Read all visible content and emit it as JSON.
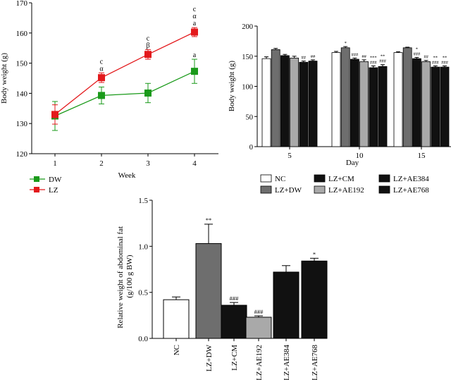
{
  "chart_data": [
    {
      "type": "line",
      "title": "",
      "xlabel": "Week",
      "ylabel": "Body weight (g)",
      "x": [
        1,
        2,
        3,
        4
      ],
      "xlim": [
        0.55,
        4.35
      ],
      "ylim": [
        120,
        170
      ],
      "yticks": [
        120,
        130,
        140,
        150,
        160,
        170
      ],
      "series": [
        {
          "name": "DW",
          "color": "#1a9a1a",
          "marker": "square",
          "values": [
            132.5,
            139.3,
            140.1,
            147.3
          ],
          "errors": [
            4.8,
            2.8,
            3.2,
            4.0
          ],
          "annotations": [
            "",
            "",
            "",
            "a"
          ]
        },
        {
          "name": "LZ",
          "color": "#e3191c",
          "marker": "square",
          "values": [
            133.0,
            145.2,
            152.9,
            160.3
          ],
          "errors": [
            3.2,
            1.6,
            1.6,
            1.5
          ],
          "annotations": [
            "",
            "c\nα",
            "c\nβ",
            "c\nα\na"
          ]
        }
      ]
    },
    {
      "type": "bar",
      "title": "",
      "xlabel": "Day",
      "ylabel": "Body weight (g)",
      "categories": [
        "5",
        "10",
        "15"
      ],
      "ylim": [
        0,
        200
      ],
      "yticks": [
        0,
        50,
        100,
        150,
        200
      ],
      "series": [
        {
          "name": "NC",
          "fill": "#ffffff",
          "values": [
            146,
            156,
            156
          ],
          "errors": [
            3,
            2,
            1.5
          ],
          "annotations": [
            "",
            "",
            ""
          ]
        },
        {
          "name": "LZ+DW",
          "fill": "#6e6e6e",
          "values": [
            161,
            164,
            164
          ],
          "errors": [
            2,
            2,
            1
          ],
          "annotations": [
            "",
            "*",
            ""
          ]
        },
        {
          "name": "LZ+CM",
          "fill": "#111111",
          "values": [
            151,
            145,
            146
          ],
          "errors": [
            2,
            2,
            2
          ],
          "annotations": [
            "",
            "###",
            "*\n###"
          ]
        },
        {
          "name": "LZ+AE192",
          "fill": "#a9a9a9",
          "values": [
            147,
            141,
            141
          ],
          "errors": [
            3,
            3,
            2
          ],
          "annotations": [
            "",
            "##",
            "##"
          ]
        },
        {
          "name": "LZ+AE384",
          "fill": "#111111",
          "values": [
            140,
            131,
            132
          ],
          "errors": [
            2,
            3,
            2
          ],
          "annotations": [
            "##",
            "***\n###",
            "**\n###"
          ]
        },
        {
          "name": "LZ+AE768",
          "fill": "#111111",
          "values": [
            142,
            133,
            132
          ],
          "errors": [
            2,
            3,
            2
          ],
          "annotations": [
            "##",
            "**\n###",
            "**\n###"
          ]
        }
      ]
    },
    {
      "type": "bar",
      "title": "",
      "xlabel": "",
      "ylabel": "Relative weight of abdominal fat\n(g/100 g BW)",
      "categories": [
        "NC",
        "LZ+DW",
        "LZ+CM",
        "LZ+AE192",
        "LZ+AE384",
        "LZ+AE768"
      ],
      "values": [
        0.42,
        1.03,
        0.36,
        0.23,
        0.72,
        0.84
      ],
      "errors": [
        0.03,
        0.21,
        0.03,
        0.015,
        0.07,
        0.03
      ],
      "fills": [
        "#ffffff",
        "#6e6e6e",
        "#111111",
        "#a9a9a9",
        "#111111",
        "#111111"
      ],
      "annotations": [
        "",
        "**",
        "###",
        "###",
        "",
        "*"
      ],
      "ylim": [
        0,
        1.5
      ],
      "yticks": [
        0.0,
        0.5,
        1.0,
        1.5
      ]
    }
  ]
}
